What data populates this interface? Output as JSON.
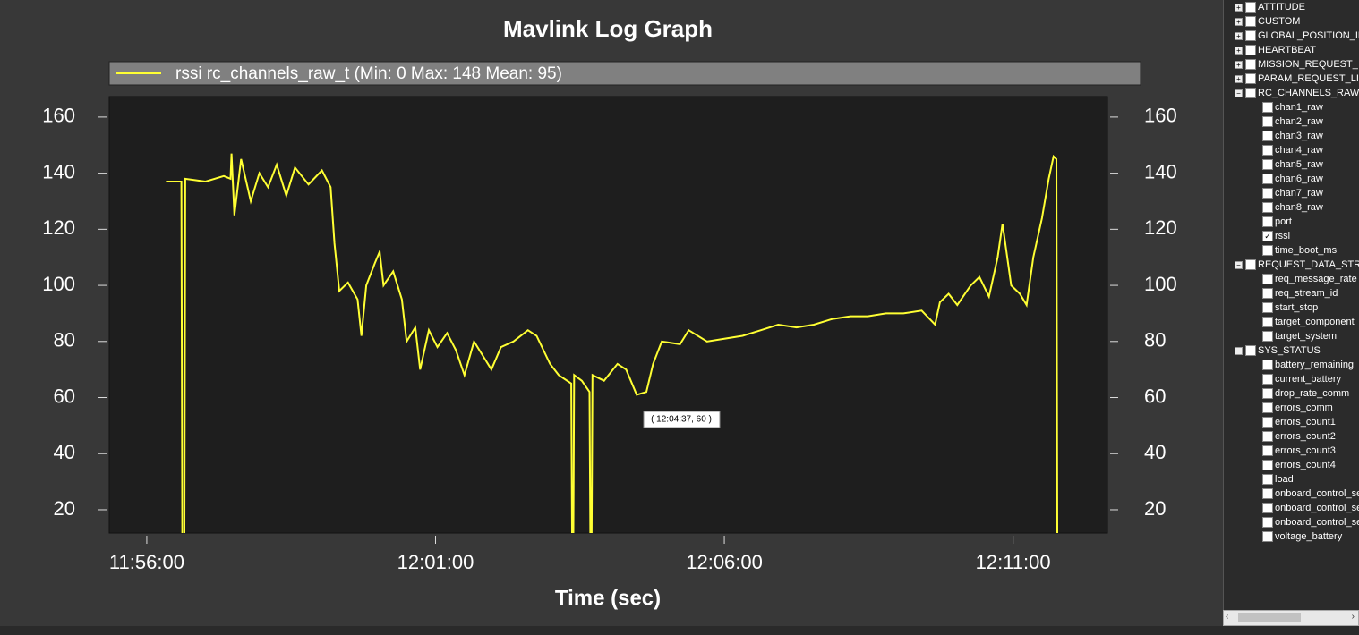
{
  "chart_data": {
    "type": "line",
    "title": "Mavlink Log Graph",
    "xlabel": "Time (sec)",
    "x": [
      42980,
      42996,
      42997,
      42999,
      43000,
      43021,
      43040,
      43047,
      43048,
      43051,
      43058,
      43068,
      43077,
      43086,
      43095,
      43105,
      43114,
      43128,
      43142,
      43151,
      43155,
      43160,
      43169,
      43179,
      43183,
      43188,
      43197,
      43202,
      43206,
      43216,
      43225,
      43230,
      43239,
      43244,
      43253,
      43262,
      43272,
      43281,
      43290,
      43300,
      43309,
      43318,
      43328,
      43341,
      43356,
      43365,
      43379,
      43388,
      43401,
      43402,
      43403,
      43404,
      43412,
      43420,
      43421,
      43422,
      43423,
      43435,
      43449,
      43458,
      43469,
      43479,
      43486,
      43495,
      43514,
      43523,
      43542,
      43560,
      43579,
      43598,
      43616,
      43635,
      43653,
      43672,
      43691,
      43709,
      43728,
      43746,
      43765,
      43779,
      43784,
      43793,
      43802,
      43816,
      43825,
      43835,
      43844,
      43849,
      43858,
      43867,
      43874,
      43881,
      43890,
      43897,
      43902,
      43905,
      43906
    ],
    "series": [
      {
        "name": "rssi rc_channels_raw_t (Min: 0 Max: 148 Mean: 95)",
        "color": "#ffff33",
        "values": [
          137,
          137,
          0,
          0,
          138,
          137,
          139,
          138,
          147,
          125,
          145,
          130,
          140,
          135,
          143,
          132,
          142,
          136,
          141,
          135,
          115,
          98,
          101,
          95,
          82,
          100,
          108,
          112,
          100,
          105,
          95,
          80,
          85,
          70,
          84,
          78,
          83,
          77,
          68,
          80,
          75,
          70,
          78,
          80,
          84,
          82,
          72,
          68,
          65,
          0,
          0,
          68,
          66,
          62,
          0,
          0,
          68,
          66,
          72,
          70,
          61,
          62,
          72,
          80,
          79,
          84,
          80,
          81,
          82,
          84,
          86,
          85,
          86,
          88,
          89,
          89,
          90,
          90,
          91,
          86,
          94,
          97,
          93,
          100,
          103,
          96,
          110,
          122,
          100,
          97,
          93,
          110,
          124,
          138,
          146,
          145,
          0
        ]
      }
    ],
    "xlim": [
      42921,
      43958
    ],
    "xticks": [
      {
        "value": 42960,
        "label": "11:56:00"
      },
      {
        "value": 43260,
        "label": "12:01:00"
      },
      {
        "value": 43560,
        "label": "12:06:00"
      },
      {
        "value": 43860,
        "label": "12:11:00"
      }
    ],
    "ylim": [
      11.7,
      167.3
    ],
    "yticks": [
      20,
      40,
      60,
      80,
      100,
      120,
      140,
      160
    ],
    "annotation": "( 12:04:37, 60 )"
  },
  "tree": [
    {
      "label": "ATTITUDE",
      "expanded": false
    },
    {
      "label": "CUSTOM",
      "expanded": false
    },
    {
      "label": "GLOBAL_POSITION_IN",
      "expanded": false
    },
    {
      "label": "HEARTBEAT",
      "expanded": false
    },
    {
      "label": "MISSION_REQUEST_",
      "expanded": false
    },
    {
      "label": "PARAM_REQUEST_LI",
      "expanded": false
    },
    {
      "label": "RC_CHANNELS_RAW",
      "expanded": true,
      "children": [
        {
          "label": "chan1_raw",
          "checked": false
        },
        {
          "label": "chan2_raw",
          "checked": false
        },
        {
          "label": "chan3_raw",
          "checked": false
        },
        {
          "label": "chan4_raw",
          "checked": false
        },
        {
          "label": "chan5_raw",
          "checked": false
        },
        {
          "label": "chan6_raw",
          "checked": false
        },
        {
          "label": "chan7_raw",
          "checked": false
        },
        {
          "label": "chan8_raw",
          "checked": false
        },
        {
          "label": "port",
          "checked": false
        },
        {
          "label": "rssi",
          "checked": true
        },
        {
          "label": "time_boot_ms",
          "checked": false
        }
      ]
    },
    {
      "label": "REQUEST_DATA_STR",
      "expanded": true,
      "children": [
        {
          "label": "req_message_rate",
          "checked": false
        },
        {
          "label": "req_stream_id",
          "checked": false
        },
        {
          "label": "start_stop",
          "checked": false
        },
        {
          "label": "target_component",
          "checked": false
        },
        {
          "label": "target_system",
          "checked": false
        }
      ]
    },
    {
      "label": "SYS_STATUS",
      "expanded": true,
      "children": [
        {
          "label": "battery_remaining",
          "checked": false
        },
        {
          "label": "current_battery",
          "checked": false
        },
        {
          "label": "drop_rate_comm",
          "checked": false
        },
        {
          "label": "errors_comm",
          "checked": false
        },
        {
          "label": "errors_count1",
          "checked": false
        },
        {
          "label": "errors_count2",
          "checked": false
        },
        {
          "label": "errors_count3",
          "checked": false
        },
        {
          "label": "errors_count4",
          "checked": false
        },
        {
          "label": "load",
          "checked": false
        },
        {
          "label": "onboard_control_se",
          "checked": false
        },
        {
          "label": "onboard_control_se",
          "checked": false
        },
        {
          "label": "onboard_control_se",
          "checked": false
        },
        {
          "label": "voltage_battery",
          "checked": false
        }
      ]
    }
  ]
}
